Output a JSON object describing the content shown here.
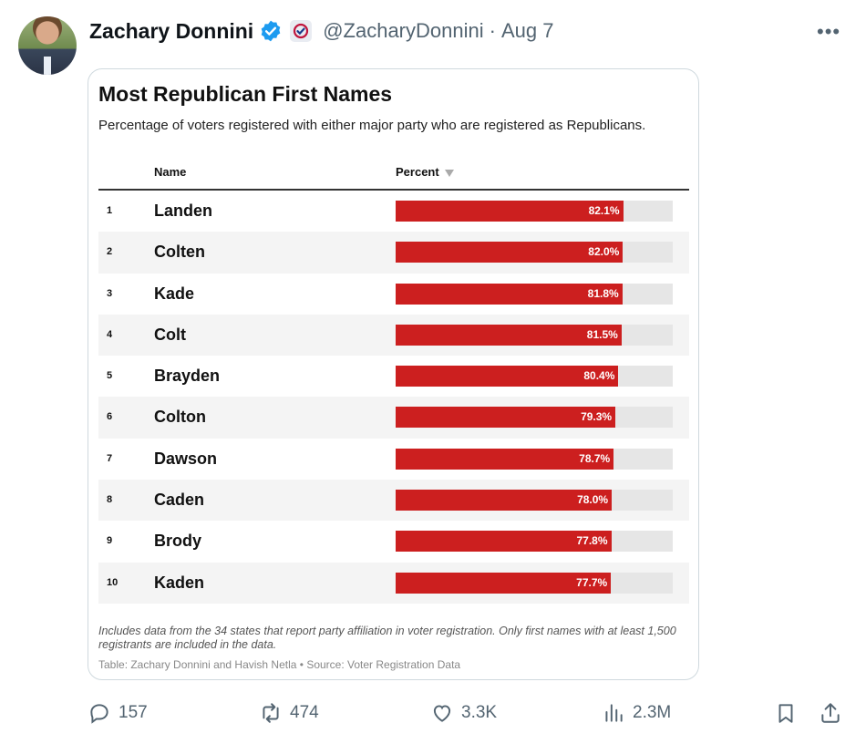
{
  "tweet": {
    "author": "Zachary Donnini",
    "handle": "@ZacharyDonnini",
    "separator": "·",
    "date": "Aug 7",
    "more_label": "•••"
  },
  "chart_data": {
    "type": "table",
    "title": "Most Republican First Names",
    "subtitle": "Percentage of voters registered with either major party who are registered as Republicans.",
    "columns": [
      "Name",
      "Percent"
    ],
    "rows": [
      {
        "rank": "1",
        "name": "Landen",
        "value": 82.1,
        "label": "82.1%"
      },
      {
        "rank": "2",
        "name": "Colten",
        "value": 82.0,
        "label": "82.0%"
      },
      {
        "rank": "3",
        "name": "Kade",
        "value": 81.8,
        "label": "81.8%"
      },
      {
        "rank": "4",
        "name": "Colt",
        "value": 81.5,
        "label": "81.5%"
      },
      {
        "rank": "5",
        "name": "Brayden",
        "value": 80.4,
        "label": "80.4%"
      },
      {
        "rank": "6",
        "name": "Colton",
        "value": 79.3,
        "label": "79.3%"
      },
      {
        "rank": "7",
        "name": "Dawson",
        "value": 78.7,
        "label": "78.7%"
      },
      {
        "rank": "8",
        "name": "Caden",
        "value": 78.0,
        "label": "78.0%"
      },
      {
        "rank": "9",
        "name": "Brody",
        "value": 77.8,
        "label": "77.8%"
      },
      {
        "rank": "10",
        "name": "Kaden",
        "value": 77.7,
        "label": "77.7%"
      }
    ],
    "bar_color": "#cc1f1f",
    "track_color": "#e6e6e6",
    "note": "Includes data from the 34 states that report party affiliation in voter registration. Only first names with at least 1,500 registrants are included in the data.",
    "source": "Table: Zachary Donnini and Havish Netla • Source: Voter Registration Data"
  },
  "actions": {
    "replies": "157",
    "retweets": "474",
    "likes": "3.3K",
    "views": "2.3M"
  },
  "colors": {
    "verified": "#1d9bf0",
    "muted_text": "#536471"
  }
}
